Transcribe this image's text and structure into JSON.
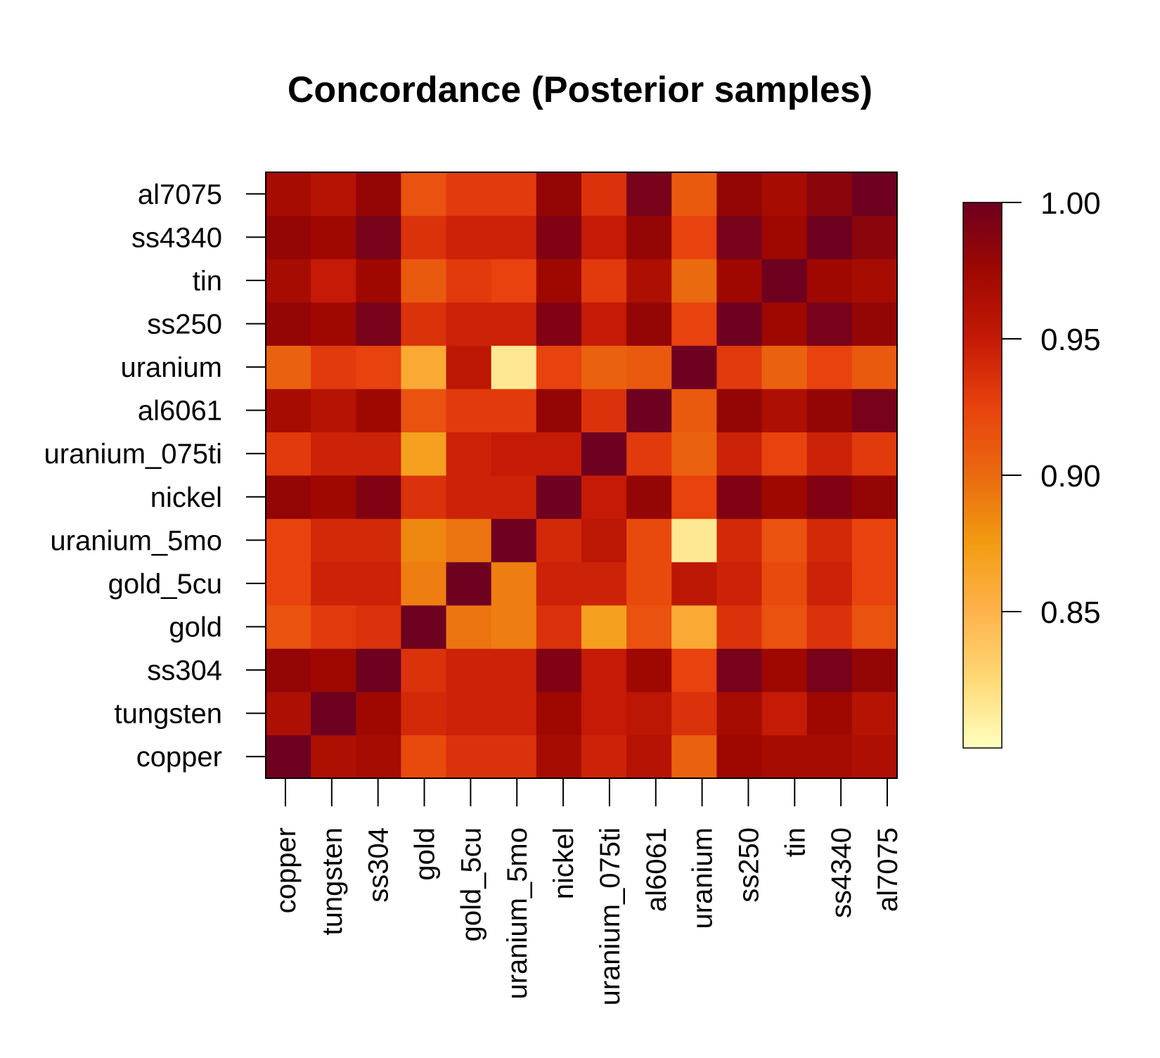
{
  "chart_data": {
    "type": "heatmap",
    "title": "Concordance (Posterior samples)",
    "xlabel": "",
    "ylabel": "",
    "categories": [
      "copper",
      "tungsten",
      "ss304",
      "gold",
      "gold_5cu",
      "uranium_5mo",
      "nickel",
      "uranium_075ti",
      "al6061",
      "uranium",
      "ss250",
      "tin",
      "ss4340",
      "al7075"
    ],
    "matrix": [
      [
        1.0,
        0.965,
        0.97,
        0.92,
        0.935,
        0.935,
        0.97,
        0.945,
        0.96,
        0.905,
        0.975,
        0.97,
        0.97,
        0.965
      ],
      [
        0.965,
        1.0,
        0.975,
        0.94,
        0.945,
        0.945,
        0.975,
        0.95,
        0.955,
        0.935,
        0.97,
        0.95,
        0.975,
        0.96
      ],
      [
        0.98,
        0.975,
        1.0,
        0.935,
        0.945,
        0.945,
        0.99,
        0.95,
        0.975,
        0.925,
        0.995,
        0.975,
        0.995,
        0.98
      ],
      [
        0.915,
        0.93,
        0.935,
        1.0,
        0.895,
        0.89,
        0.935,
        0.87,
        0.915,
        0.86,
        0.935,
        0.915,
        0.935,
        0.915
      ],
      [
        0.925,
        0.945,
        0.945,
        0.89,
        1.0,
        0.89,
        0.945,
        0.945,
        0.92,
        0.955,
        0.945,
        0.92,
        0.945,
        0.925
      ],
      [
        0.925,
        0.94,
        0.94,
        0.885,
        0.895,
        1.0,
        0.94,
        0.955,
        0.92,
        0.815,
        0.94,
        0.915,
        0.94,
        0.925
      ],
      [
        0.98,
        0.975,
        0.99,
        0.935,
        0.945,
        0.945,
        1.0,
        0.95,
        0.98,
        0.925,
        0.99,
        0.975,
        0.99,
        0.98
      ],
      [
        0.93,
        0.945,
        0.945,
        0.87,
        0.945,
        0.95,
        0.95,
        1.0,
        0.93,
        0.905,
        0.945,
        0.925,
        0.945,
        0.93
      ],
      [
        0.97,
        0.96,
        0.975,
        0.915,
        0.93,
        0.93,
        0.98,
        0.935,
        1.0,
        0.91,
        0.98,
        0.965,
        0.98,
        0.995
      ],
      [
        0.905,
        0.93,
        0.925,
        0.86,
        0.955,
        0.815,
        0.925,
        0.905,
        0.91,
        1.0,
        0.93,
        0.905,
        0.925,
        0.91
      ],
      [
        0.98,
        0.975,
        0.995,
        0.935,
        0.945,
        0.945,
        0.99,
        0.95,
        0.98,
        0.925,
        1.0,
        0.975,
        0.995,
        0.98
      ],
      [
        0.97,
        0.95,
        0.975,
        0.91,
        0.93,
        0.925,
        0.975,
        0.93,
        0.965,
        0.9,
        0.975,
        1.0,
        0.975,
        0.97
      ],
      [
        0.98,
        0.975,
        0.995,
        0.935,
        0.945,
        0.945,
        0.99,
        0.95,
        0.98,
        0.925,
        0.995,
        0.975,
        1.0,
        0.985
      ],
      [
        0.97,
        0.96,
        0.98,
        0.915,
        0.93,
        0.93,
        0.98,
        0.935,
        0.995,
        0.91,
        0.98,
        0.97,
        0.985,
        1.0
      ]
    ],
    "colorbar": {
      "range": [
        0.8,
        1.0
      ],
      "ticks": [
        1.0,
        0.95,
        0.9,
        0.85
      ],
      "tick_labels": [
        "1.00",
        "0.95",
        "0.90",
        "0.85"
      ],
      "colors": [
        "#ffffbf",
        "#fed976",
        "#feb24c",
        "#f39c12",
        "#ea6a10",
        "#e8420e",
        "#c41a06",
        "#9e0800",
        "#6e0020"
      ]
    }
  }
}
